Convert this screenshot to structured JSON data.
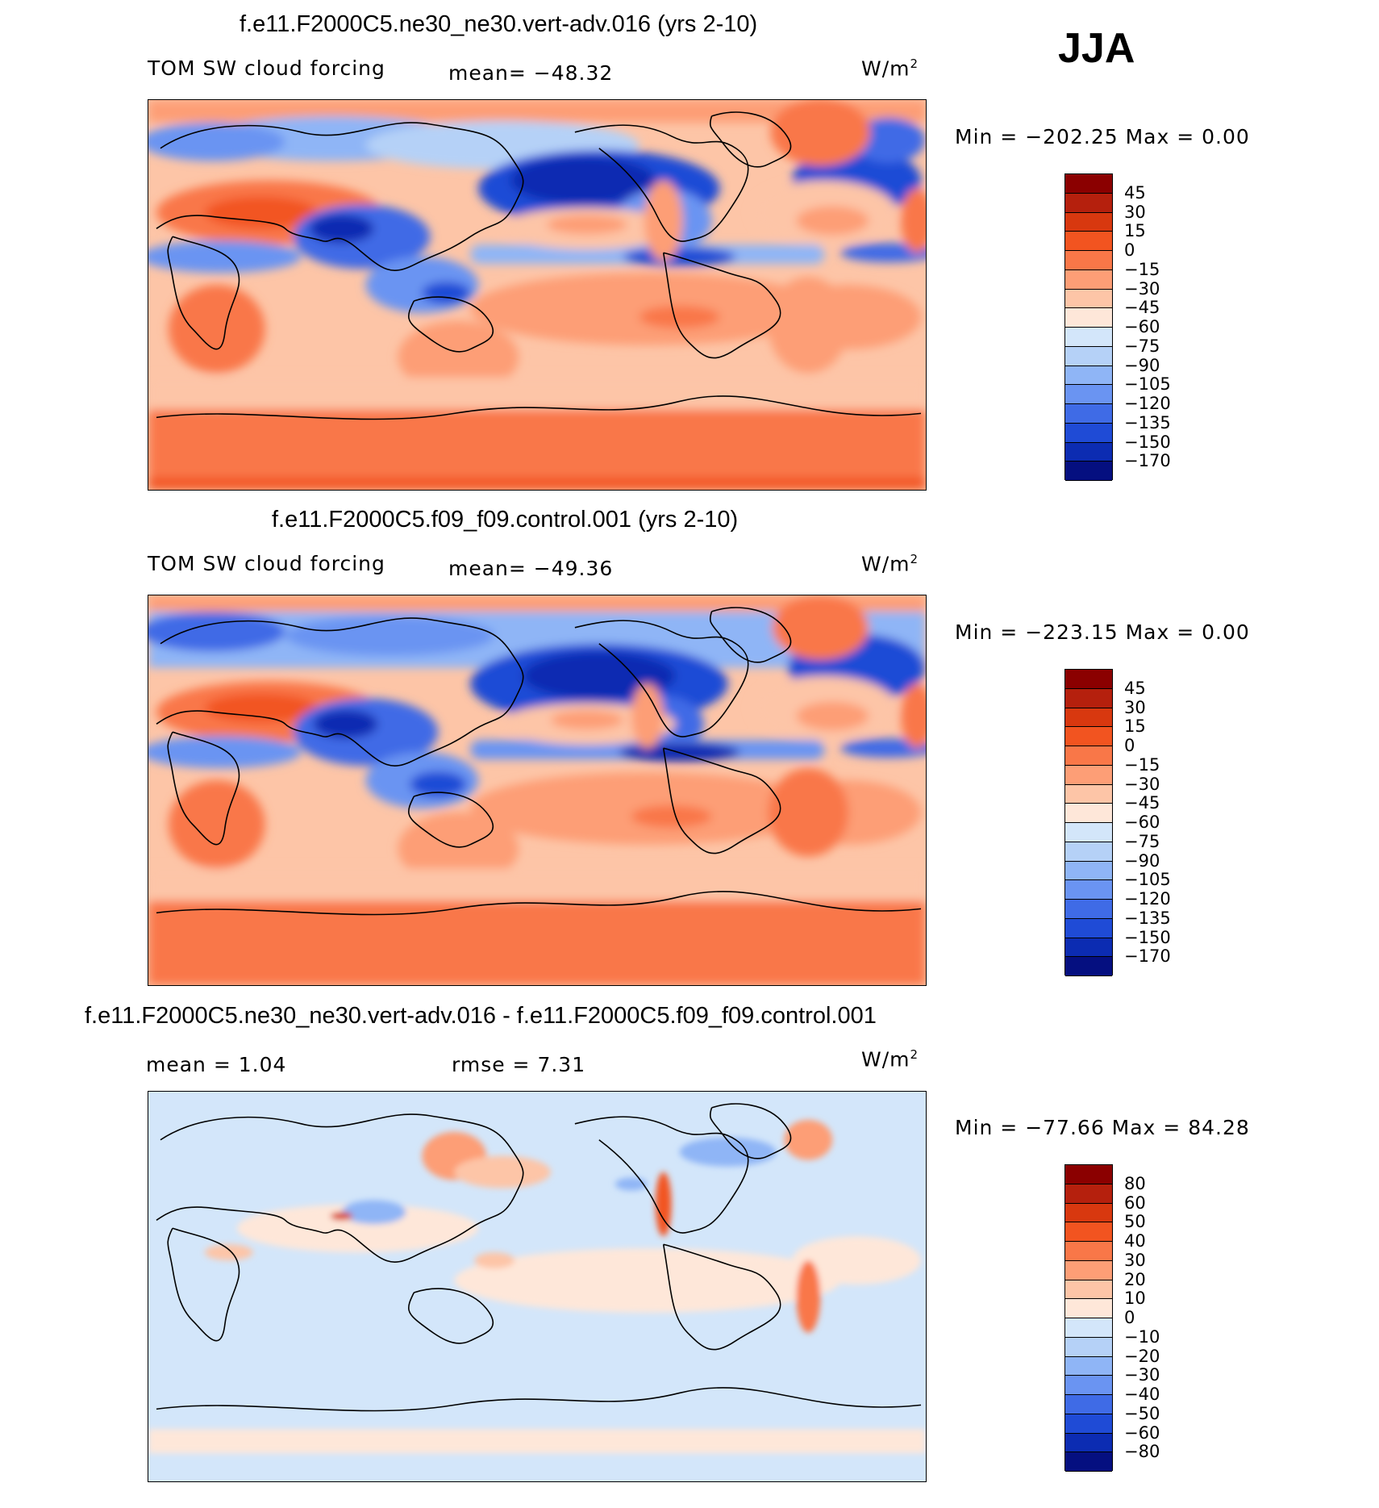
{
  "season": "JJA",
  "units_base": "W/m",
  "units_exp": "2",
  "panels": [
    {
      "title": "f.e11.F2000C5.ne30_ne30.vert-adv.016 (yrs 2-10)",
      "left_label": "TOM SW cloud forcing",
      "center_label": "mean=  −48.32",
      "minmax": "Min  =  −202.25  Max  =     0.00",
      "colorbar": {
        "labels": [
          "45",
          "30",
          "15",
          "0",
          "−15",
          "−30",
          "−45",
          "−60",
          "−75",
          "−90",
          "−105",
          "−120",
          "−135",
          "−150",
          "−170"
        ],
        "colors": [
          "#8b0000",
          "#b5200d",
          "#d8380f",
          "#f25420",
          "#f97748",
          "#fd9e76",
          "#fdc5a7",
          "#fee7d9",
          "#d3e6fa",
          "#b5d1f7",
          "#8fb5f6",
          "#6a94f2",
          "#3f6be6",
          "#1f4bd6",
          "#0c2cb2",
          "#050f80"
        ]
      },
      "map_type": "forcing"
    },
    {
      "title": "f.e11.F2000C5.f09_f09.control.001 (yrs 2-10)",
      "left_label": "TOM SW cloud forcing",
      "center_label": "mean=  −49.36",
      "minmax": "Min  =  −223.15  Max  =     0.00",
      "colorbar": {
        "labels": [
          "45",
          "30",
          "15",
          "0",
          "−15",
          "−30",
          "−45",
          "−60",
          "−75",
          "−90",
          "−105",
          "−120",
          "−135",
          "−150",
          "−170"
        ],
        "colors": [
          "#8b0000",
          "#b5200d",
          "#d8380f",
          "#f25420",
          "#f97748",
          "#fd9e76",
          "#fdc5a7",
          "#fee7d9",
          "#d3e6fa",
          "#b5d1f7",
          "#8fb5f6",
          "#6a94f2",
          "#3f6be6",
          "#1f4bd6",
          "#0c2cb2",
          "#050f80"
        ]
      },
      "map_type": "forcing"
    },
    {
      "title": "f.e11.F2000C5.ne30_ne30.vert-adv.016 - f.e11.F2000C5.f09_f09.control.001",
      "left_label": "mean  =     1.04",
      "center_label": "rmse  =     7.31",
      "minmax": "Min  =  −77.66  Max  =    84.28",
      "colorbar": {
        "labels": [
          "80",
          "60",
          "50",
          "40",
          "30",
          "20",
          "10",
          "0",
          "−10",
          "−20",
          "−30",
          "−40",
          "−50",
          "−60",
          "−80"
        ],
        "colors": [
          "#8b0000",
          "#b5200d",
          "#d8380f",
          "#f25420",
          "#f97748",
          "#fd9e76",
          "#fdc5a7",
          "#fee7d9",
          "#d3e6fa",
          "#b5d1f7",
          "#8fb5f6",
          "#6a94f2",
          "#3f6be6",
          "#1f4bd6",
          "#0c2cb2",
          "#050f80"
        ]
      },
      "map_type": "difference"
    }
  ]
}
